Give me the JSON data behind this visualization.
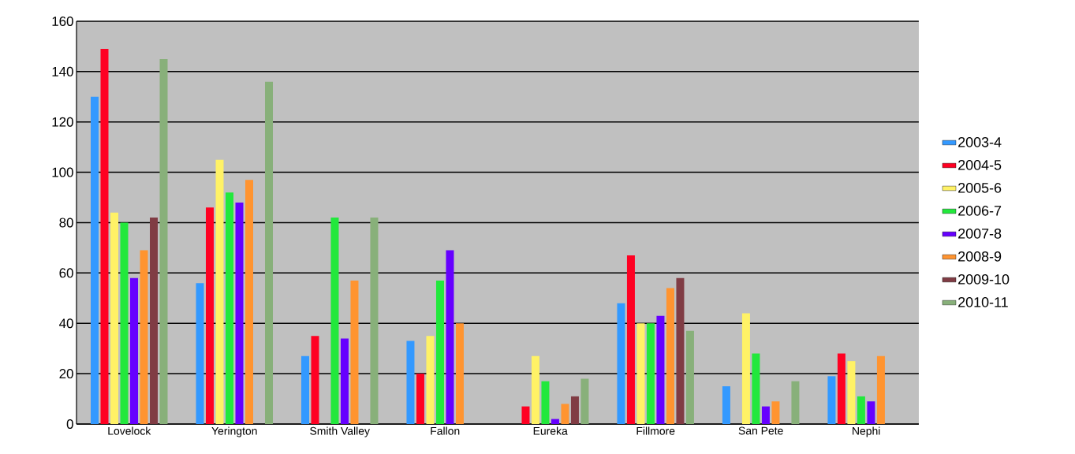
{
  "chart_data": {
    "type": "bar",
    "categories": [
      "Lovelock",
      "Yerington",
      "Smith Valley",
      "Fallon",
      "Eureka",
      "Fillmore",
      "San Pete",
      "Nephi"
    ],
    "series": [
      {
        "name": "2003-4",
        "color": "#3399ff",
        "values": [
          130,
          56,
          27,
          33,
          null,
          48,
          15,
          19
        ]
      },
      {
        "name": "2004-5",
        "color": "#ff0022",
        "values": [
          149,
          86,
          35,
          20,
          7,
          67,
          null,
          28
        ]
      },
      {
        "name": "2005-6",
        "color": "#fff266",
        "values": [
          84,
          105,
          null,
          35,
          27,
          40,
          44,
          25
        ]
      },
      {
        "name": "2006-7",
        "color": "#22e83c",
        "values": [
          80,
          92,
          82,
          57,
          17,
          40,
          28,
          11
        ]
      },
      {
        "name": "2007-8",
        "color": "#6600ff",
        "values": [
          58,
          88,
          34,
          69,
          2,
          43,
          7,
          9
        ]
      },
      {
        "name": "2008-9",
        "color": "#ff9430",
        "values": [
          69,
          97,
          57,
          40,
          8,
          54,
          9,
          27
        ]
      },
      {
        "name": "2009-10",
        "color": "#803c44",
        "values": [
          82,
          null,
          null,
          null,
          11,
          58,
          null,
          null
        ]
      },
      {
        "name": "2010-11",
        "color": "#88b07a",
        "values": [
          145,
          136,
          82,
          null,
          18,
          37,
          17,
          null
        ]
      }
    ],
    "ylim": [
      0,
      160
    ],
    "yticks": [
      0,
      20,
      40,
      60,
      80,
      100,
      120,
      140,
      160
    ],
    "grid": "y",
    "legend": "right"
  }
}
